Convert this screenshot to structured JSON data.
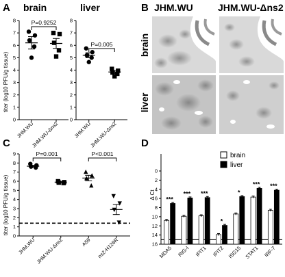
{
  "panel_labels": [
    "A",
    "B",
    "C",
    "D"
  ],
  "chart_data": [
    {
      "panel": "A",
      "type": "scatter",
      "title": "brain",
      "ylabel": "titer (log10 PFU/g tissue)",
      "categories": [
        "JHM.WU",
        "JHM.WU-Δns2"
      ],
      "ylim": [
        0,
        8
      ],
      "yticks": [
        "0",
        "1",
        "2",
        "3",
        "4",
        "5",
        "6",
        "7",
        "8"
      ],
      "series": [
        {
          "category": "JHM.WU",
          "marker": "circle",
          "values": [
            7.1,
            6.8,
            6.4,
            5.9,
            5.0
          ],
          "mean": 6.2,
          "sem": 0.5
        },
        {
          "category": "JHM.WU-Δns2",
          "marker": "square",
          "values": [
            7.0,
            6.9,
            6.2,
            5.6,
            5.1
          ],
          "mean": 6.15,
          "sem": 0.4
        }
      ],
      "annotation": "P=0.9252"
    },
    {
      "panel": "A",
      "type": "scatter",
      "title": "liver",
      "categories": [
        "JHM.WU",
        "JHM.WU-Δns2"
      ],
      "ylim": [
        0,
        8
      ],
      "yticks": [
        "0",
        "1",
        "2",
        "3",
        "4",
        "5",
        "6",
        "7",
        "8"
      ],
      "series": [
        {
          "category": "JHM.WU",
          "marker": "circle",
          "values": [
            5.75,
            5.45,
            5.2,
            5.0,
            4.65
          ],
          "mean": 5.2,
          "sem": 0.2
        },
        {
          "category": "JHM.WU-Δns2",
          "marker": "square",
          "values": [
            4.1,
            3.95,
            3.8,
            3.7,
            3.5
          ],
          "mean": 3.85,
          "sem": 0.12
        }
      ],
      "annotation": "P=0.005"
    },
    {
      "panel": "C",
      "type": "scatter",
      "ylabel": "titer (log10 PFU/g tissue)",
      "categories": [
        "JHM.WU",
        "JHM.WU-Δns2",
        "A59",
        "ns2-H126R"
      ],
      "ylim": [
        0,
        9
      ],
      "yticks": [
        "0",
        "1",
        "2",
        "3",
        "4",
        "5",
        "6",
        "7",
        "8",
        "9"
      ],
      "series": [
        {
          "category": "JHM.WU",
          "marker": "circle",
          "values": [
            7.9,
            7.75,
            7.6,
            7.5
          ],
          "mean": 7.65,
          "sem": 0.1
        },
        {
          "category": "JHM.WU-Δns2",
          "marker": "square",
          "values": [
            6.0,
            5.9,
            5.85,
            5.8
          ],
          "mean": 5.9,
          "sem": 0.05
        },
        {
          "category": "A59",
          "marker": "triangle-up",
          "values": [
            7.0,
            6.6,
            6.3,
            5.5
          ],
          "mean": 6.35,
          "sem": 0.3
        },
        {
          "category": "ns2-H126R",
          "marker": "triangle-down",
          "values": [
            4.4,
            3.6,
            2.9,
            1.5
          ],
          "mean": 2.9,
          "sem": 0.55
        }
      ],
      "detection_limit": 1.4,
      "annotations": [
        "P=0.001",
        "P<0.001"
      ]
    },
    {
      "panel": "D",
      "type": "bar",
      "ylabel": "Δ Ct",
      "ylim": [
        0,
        16
      ],
      "y_inverted": true,
      "yticks": [
        "0",
        "2",
        "4",
        "6",
        "8",
        "10",
        "12",
        "14",
        "16"
      ],
      "categories": [
        "MDA5",
        "RIG-I",
        "IFIT1",
        "IFIT2",
        "ISG15",
        "STAT1",
        "IRF-7"
      ],
      "series": [
        {
          "name": "brain",
          "color": "#ffffff",
          "values": [
            10.8,
            9.9,
            9.8,
            13.9,
            9.4,
            5.7,
            8.6
          ]
        },
        {
          "name": "liver",
          "color": "#000000",
          "values": [
            7.1,
            5.9,
            5.8,
            11.9,
            5.6,
            3.8,
            4.2
          ]
        }
      ],
      "significance": [
        "***",
        "***",
        "***",
        "*",
        "*",
        "***",
        "***"
      ]
    }
  ],
  "micrographs": {
    "columns": [
      "JHM.WU",
      "JHM.WU-Δns2"
    ],
    "rows": [
      "brain",
      "liver"
    ]
  }
}
